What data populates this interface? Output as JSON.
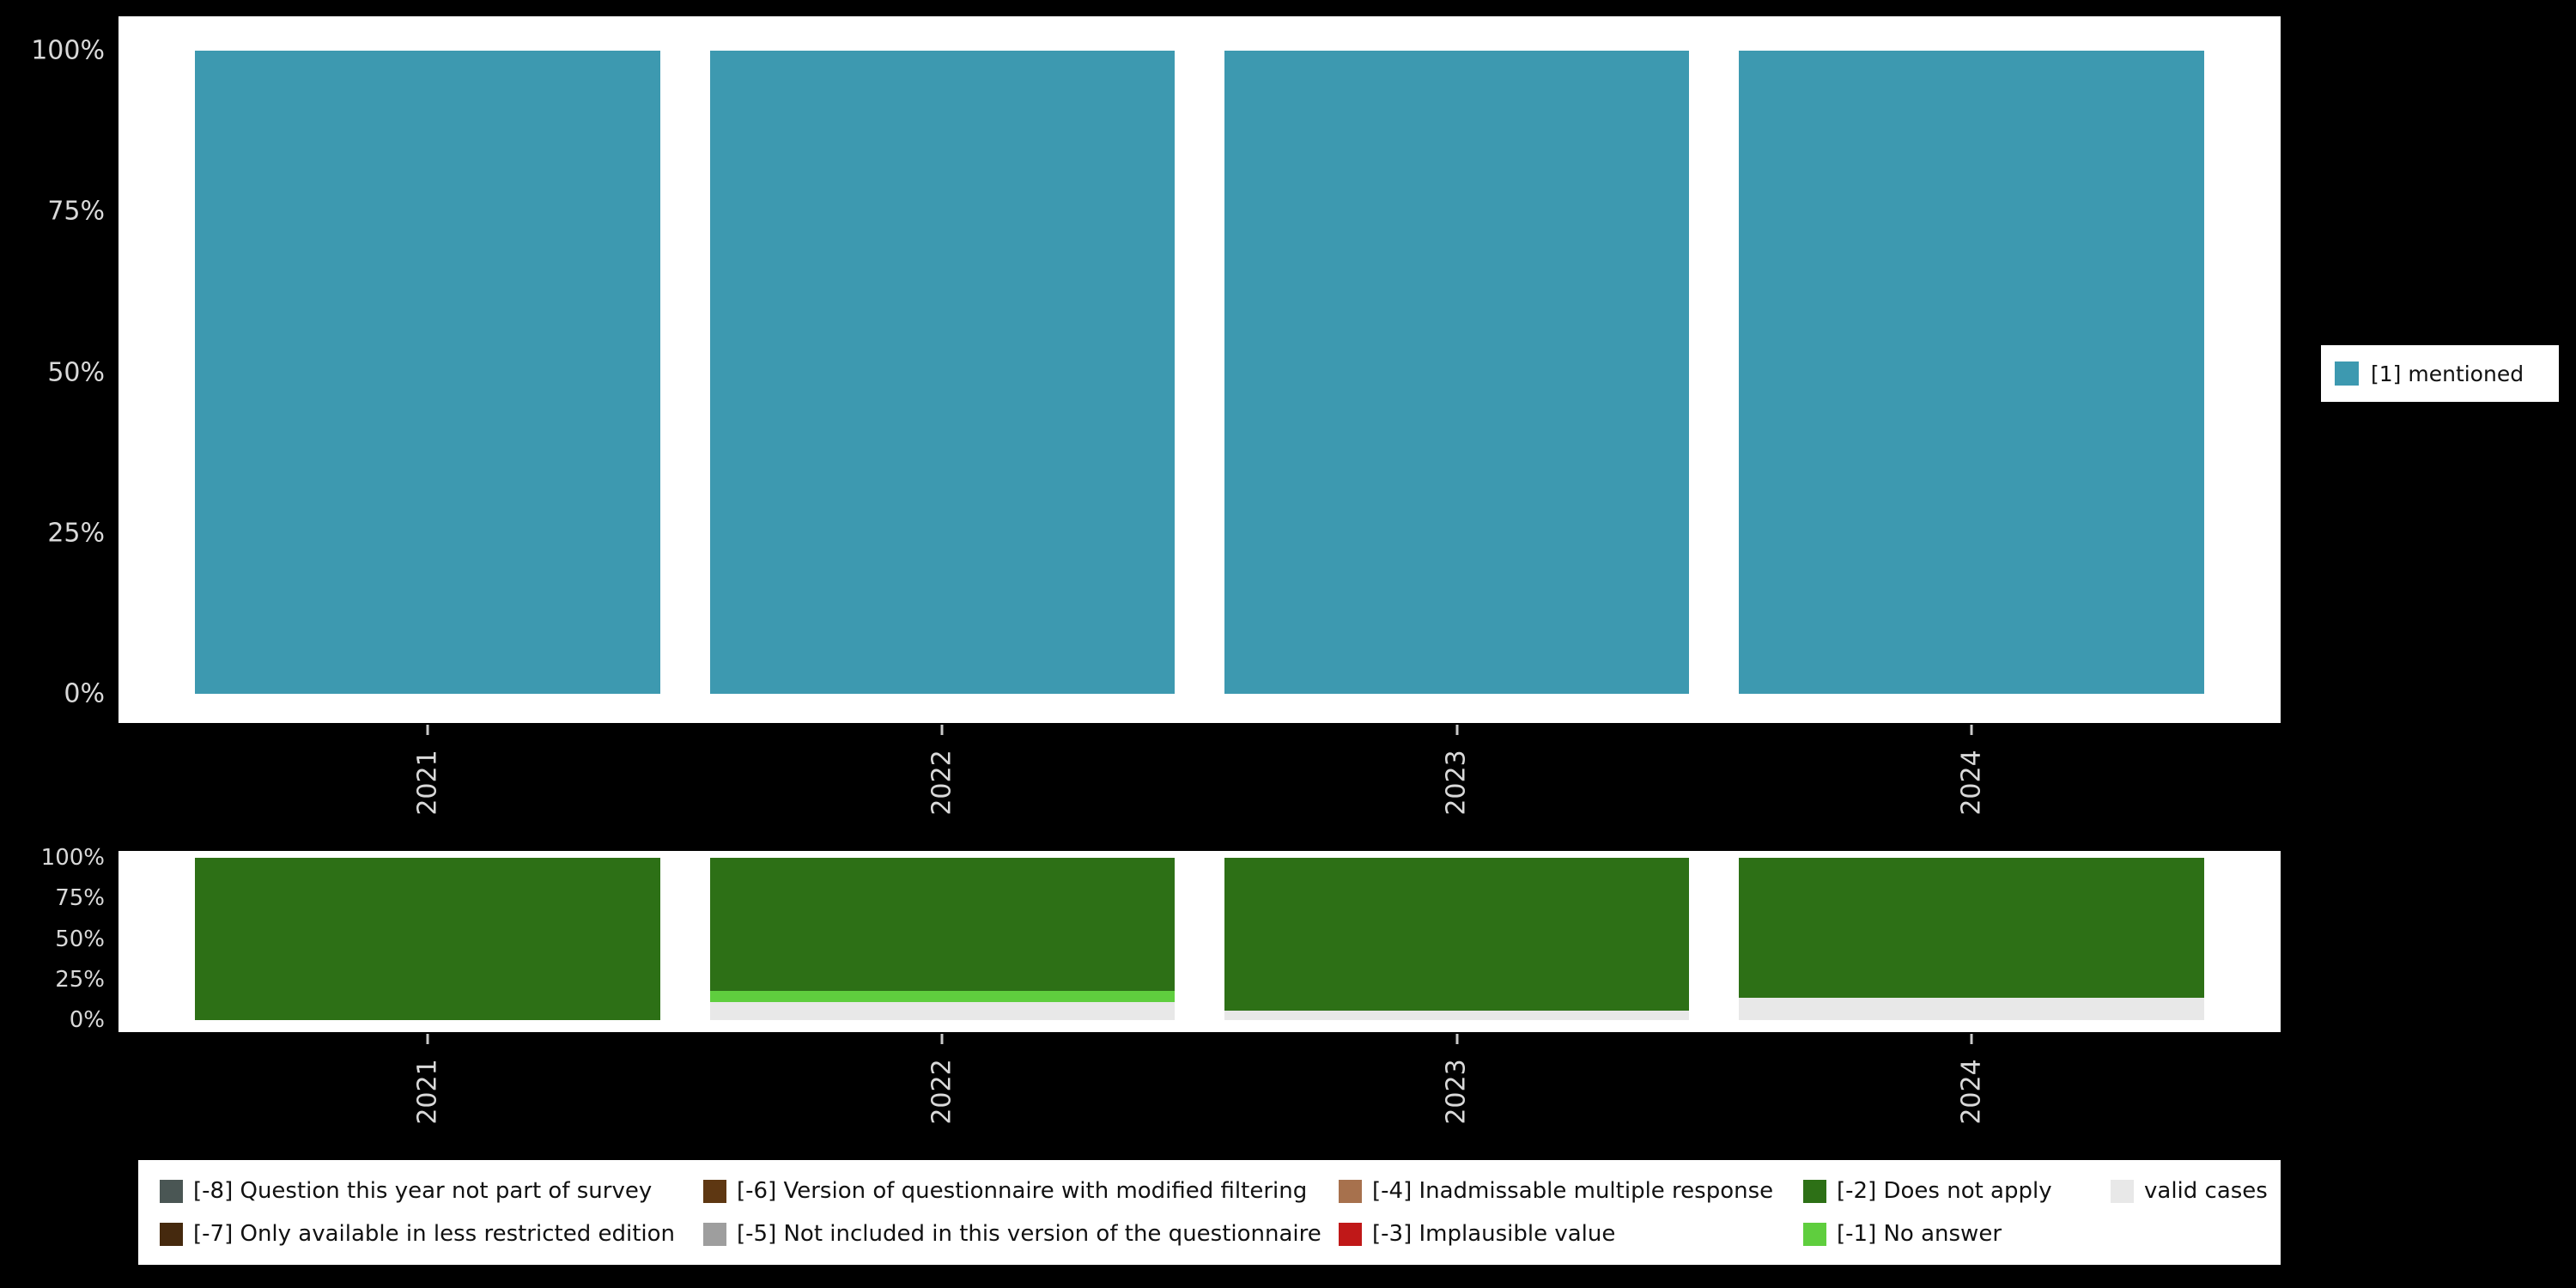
{
  "page": {
    "background": "#000000",
    "axis_text_color": "#d9d9d9"
  },
  "chart_data": [
    {
      "id": "values-chart",
      "type": "bar",
      "stacked": true,
      "stack_order": "top-to-bottom",
      "title": "",
      "xlabel": "",
      "ylabel": "",
      "categories": [
        "2021",
        "2022",
        "2023",
        "2024"
      ],
      "series": [
        {
          "name": "[1] mentioned",
          "color": "#3d99b0",
          "values": [
            100,
            100,
            100,
            100
          ]
        }
      ],
      "ylim": [
        0,
        100
      ],
      "ytick_values": [
        100,
        75,
        50,
        25,
        0
      ],
      "ytick_labels": [
        "100%",
        "75%",
        "50%",
        "25%",
        "0%"
      ],
      "grid": false,
      "legend_position": "right"
    },
    {
      "id": "missing-values-chart",
      "type": "bar",
      "stacked": true,
      "stack_order": "top-to-bottom",
      "title": "",
      "xlabel": "",
      "ylabel": "",
      "categories": [
        "2021",
        "2022",
        "2023",
        "2024"
      ],
      "series": [
        {
          "name": "[-2] Does not apply",
          "color": "#2d7016",
          "values": [
            100,
            82,
            94,
            86
          ]
        },
        {
          "name": "[-1] No answer",
          "color": "#5fce3e",
          "values": [
            0,
            7,
            0,
            0
          ]
        },
        {
          "name": "valid cases",
          "color": "#e8e8e8",
          "values": [
            0,
            11,
            6,
            14
          ]
        }
      ],
      "ylim": [
        0,
        100
      ],
      "ytick_values": [
        100,
        75,
        50,
        25,
        0
      ],
      "ytick_labels": [
        "100%",
        "75%",
        "50%",
        "25%",
        "0%"
      ],
      "grid": false,
      "legend_position": "bottom"
    }
  ],
  "legend_bottom": {
    "items": [
      {
        "label": "[-8] Question this year not part of survey",
        "color": "#4a5654"
      },
      {
        "label": "[-6] Version of questionnaire with modified filtering",
        "color": "#5e3712"
      },
      {
        "label": "[-4] Inadmissable multiple response",
        "color": "#a7714d"
      },
      {
        "label": "[-2] Does not apply",
        "color": "#2d7016"
      },
      {
        "label": "valid cases",
        "color": "#e8e8e8"
      },
      {
        "label": "[-7] Only available in less restricted edition",
        "color": "#45290e"
      },
      {
        "label": "[-5] Not included in this version of the questionnaire",
        "color": "#9e9e9e"
      },
      {
        "label": "[-3] Implausible value",
        "color": "#c01818"
      },
      {
        "label": "[-1] No answer",
        "color": "#5fce3e"
      }
    ]
  }
}
